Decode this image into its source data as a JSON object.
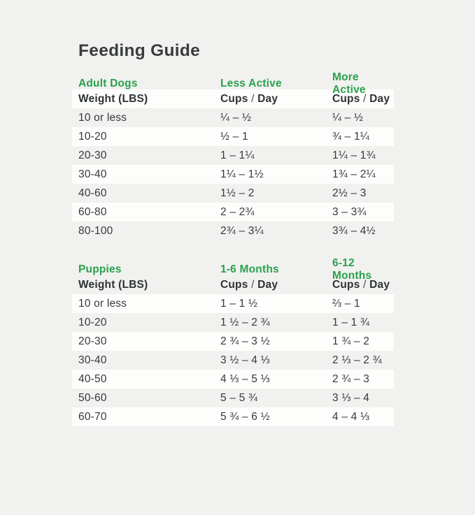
{
  "title": "Feeding Guide",
  "colors": {
    "accent_green": "#27A24B",
    "page_background": "#F1F1EF",
    "row_highlight": "#FDFDFC",
    "text_dark": "#34383C"
  },
  "sections": [
    {
      "category": "Adult Dogs",
      "col2_header": "Less Active",
      "col3_header": "More Active",
      "subheader": {
        "weight": "Weight (LBS)",
        "cups": "Cups",
        "slash": "/",
        "day": "Day"
      },
      "rows": [
        {
          "weight": "10 or less",
          "col2": "¼ – ½",
          "col3": "¼ – ½"
        },
        {
          "weight": "10-20",
          "col2": "½ – 1",
          "col3": "¾ – 1¼"
        },
        {
          "weight": "20-30",
          "col2": "1 – 1¼",
          "col3": "1¼ – 1¾"
        },
        {
          "weight": "30-40",
          "col2": "1¼ – 1½",
          "col3": "1¾ – 2¼"
        },
        {
          "weight": "40-60",
          "col2": "1½ – 2",
          "col3": "2½ – 3"
        },
        {
          "weight": "60-80",
          "col2": "2 – 2¾",
          "col3": "3 – 3¾"
        },
        {
          "weight": "80-100",
          "col2": "2¾ – 3¼",
          "col3": "3¾ – 4½"
        }
      ]
    },
    {
      "category": "Puppies",
      "col2_header": "1-6 Months",
      "col3_header": "6-12 Months",
      "subheader": {
        "weight": "Weight (LBS)",
        "cups": "Cups",
        "slash": "/",
        "day": "Day"
      },
      "rows": [
        {
          "weight": "10 or less",
          "col2": "1 – 1 ½",
          "col3": "⅔ – 1"
        },
        {
          "weight": "10-20",
          "col2": "1 ½ – 2 ¾",
          "col3": "1 – 1 ¾"
        },
        {
          "weight": "20-30",
          "col2": "2 ¾ – 3 ½",
          "col3": "1 ¾ – 2"
        },
        {
          "weight": "30-40",
          "col2": "3 ½ – 4 ⅓",
          "col3": "2 ⅓ – 2 ¾"
        },
        {
          "weight": "40-50",
          "col2": "4 ⅓ – 5 ⅓",
          "col3": "2 ¾ – 3"
        },
        {
          "weight": "50-60",
          "col2": "5 – 5 ¾",
          "col3": "3 ⅓ – 4"
        },
        {
          "weight": "60-70",
          "col2": "5 ¾ – 6 ½",
          "col3": "4 – 4 ⅓"
        }
      ]
    }
  ]
}
